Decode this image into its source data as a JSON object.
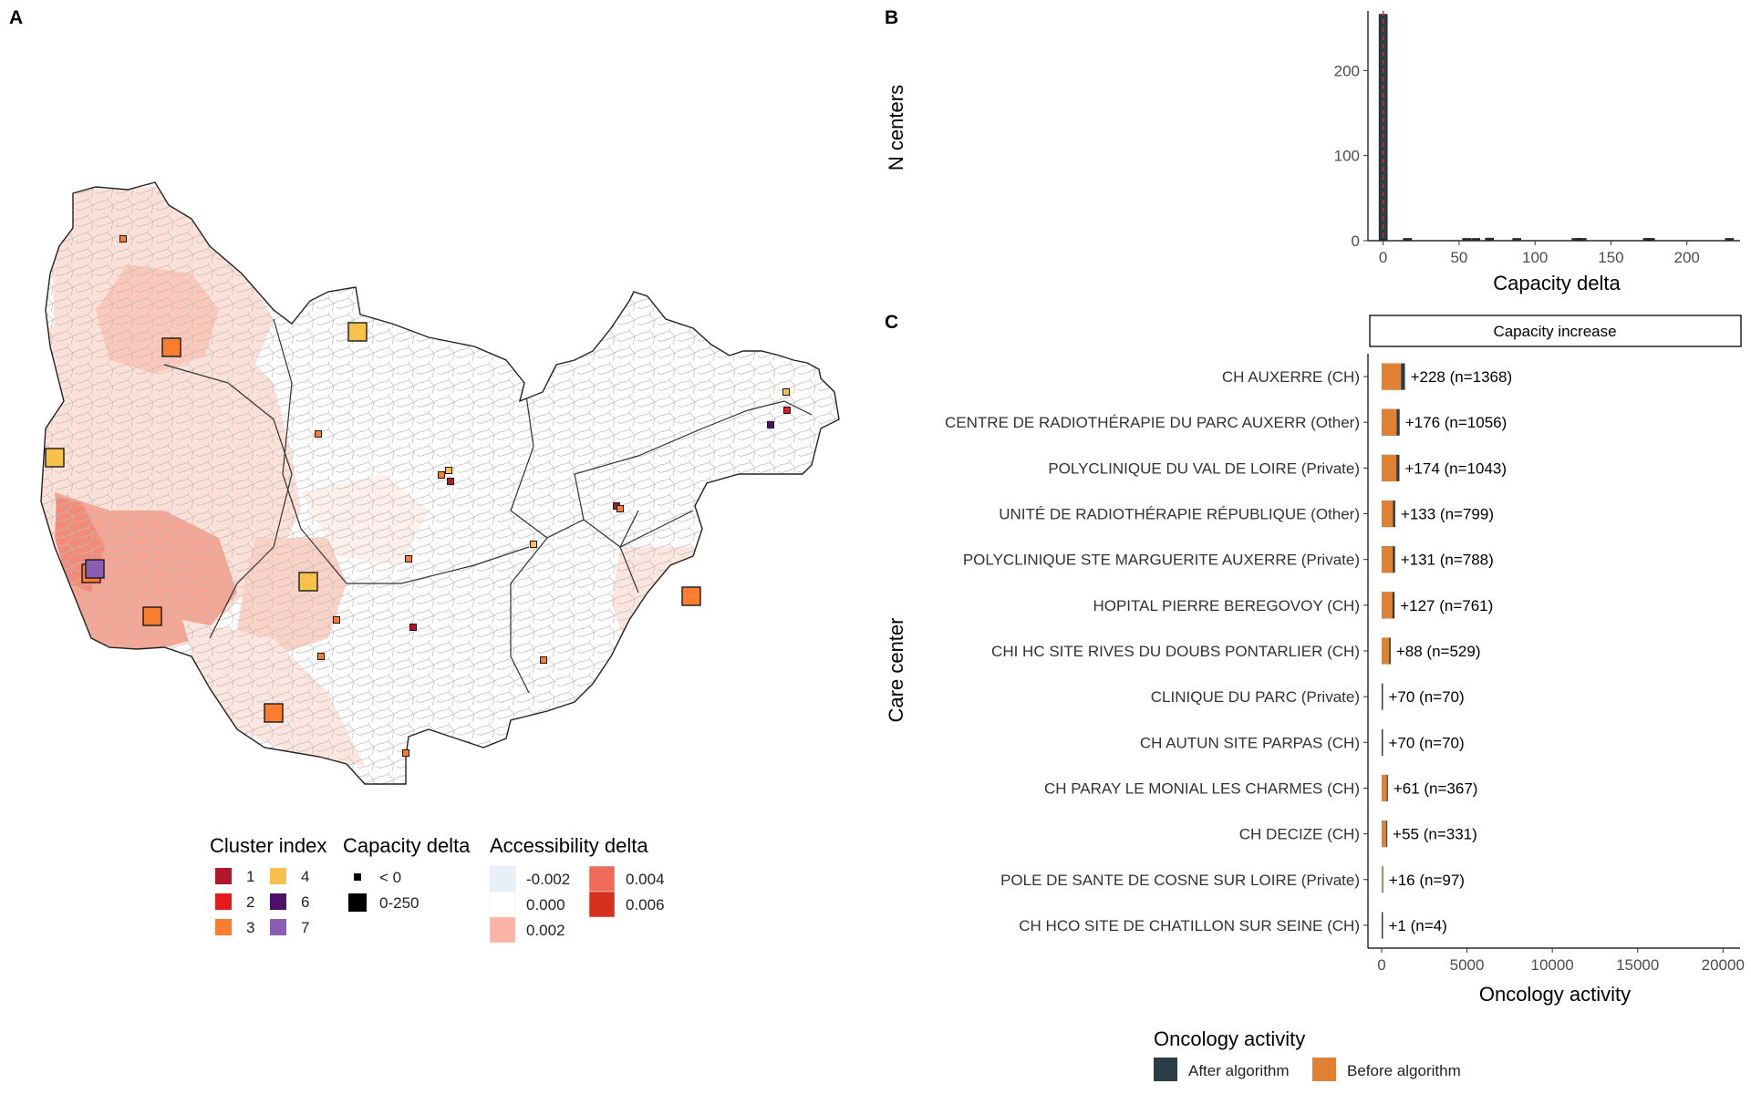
{
  "panels": {
    "a": "A",
    "b": "B",
    "c": "C"
  },
  "map": {
    "centers": [
      {
        "cluster": "3",
        "big": false
      },
      {
        "cluster": "3",
        "big": true
      },
      {
        "cluster": "4",
        "big": true
      },
      {
        "cluster": "4",
        "big": true
      },
      {
        "cluster": "3",
        "big": true
      },
      {
        "cluster": "7",
        "big": true
      },
      {
        "cluster": "3",
        "big": true
      },
      {
        "cluster": "4",
        "big": true
      },
      {
        "cluster": "3",
        "big": true
      },
      {
        "cluster": "3",
        "big": true
      },
      {
        "cluster": "3",
        "big": false
      },
      {
        "cluster": "4",
        "big": false
      },
      {
        "cluster": "1",
        "big": false
      },
      {
        "cluster": "3",
        "big": false
      },
      {
        "cluster": "3",
        "big": false
      },
      {
        "cluster": "1",
        "big": false
      },
      {
        "cluster": "3",
        "big": false
      },
      {
        "cluster": "3",
        "big": false
      },
      {
        "cluster": "3",
        "big": false
      },
      {
        "cluster": "3",
        "big": false
      },
      {
        "cluster": "4",
        "big": false
      },
      {
        "cluster": "1",
        "big": false
      },
      {
        "cluster": "3",
        "big": false
      },
      {
        "cluster": "4",
        "big": false
      },
      {
        "cluster": "2",
        "big": false
      },
      {
        "cluster": "6",
        "big": false
      }
    ]
  },
  "legend": {
    "cluster": {
      "title": "Cluster index",
      "items": [
        {
          "label": "1",
          "color": "#b2182b"
        },
        {
          "label": "2",
          "color": "#e41a1c"
        },
        {
          "label": "3",
          "color": "#fb7e30"
        },
        {
          "label": "4",
          "color": "#f9c04a"
        },
        {
          "label": "6",
          "color": "#4d1066"
        },
        {
          "label": "7",
          "color": "#8a5cb3"
        }
      ]
    },
    "capacity": {
      "title": "Capacity delta",
      "items": [
        {
          "label": "< 0",
          "size": "small"
        },
        {
          "label": "0-250",
          "size": "large"
        }
      ]
    },
    "accessibility": {
      "title": "Accessibility delta",
      "items": [
        {
          "label": "-0.002",
          "color": "#e7eff8"
        },
        {
          "label": "0.000",
          "color": "#ffffff"
        },
        {
          "label": "0.002",
          "color": "#fbb4a6"
        },
        {
          "label": "0.004",
          "color": "#ef6a5a"
        },
        {
          "label": "0.006",
          "color": "#d7301f"
        }
      ]
    }
  },
  "activity_legend": {
    "title": "Oncology activity",
    "items": [
      {
        "label": "After algorithm",
        "color": "#2b3e47"
      },
      {
        "label": "Before algorithm",
        "color": "#e08133"
      }
    ]
  },
  "chart_data": [
    {
      "type": "bar",
      "panel": "B",
      "xlabel": "Capacity delta",
      "ylabel": "N centers",
      "xlim": [
        -10,
        235
      ],
      "ylim": [
        0,
        270
      ],
      "xticks": [
        "0",
        "50",
        "100",
        "150",
        "200"
      ],
      "yticks": [
        "0",
        "100",
        "200"
      ],
      "bar_color": "#2b3e47",
      "mean_line_color": "#c0392b",
      "bins": [
        {
          "x": 0,
          "count": 265
        },
        {
          "x": 16,
          "count": 1
        },
        {
          "x": 55,
          "count": 1
        },
        {
          "x": 61,
          "count": 1
        },
        {
          "x": 70,
          "count": 2
        },
        {
          "x": 88,
          "count": 1
        },
        {
          "x": 127,
          "count": 1
        },
        {
          "x": 131,
          "count": 1
        },
        {
          "x": 174,
          "count": 1
        },
        {
          "x": 176,
          "count": 1
        },
        {
          "x": 228,
          "count": 1
        }
      ]
    },
    {
      "type": "bar",
      "panel": "C",
      "orientation": "horizontal",
      "facet": "Capacity increase",
      "xlabel": "Oncology activity",
      "ylabel": "Care center",
      "xlim": [
        -800,
        21000
      ],
      "xticks": [
        "0",
        "5000",
        "10000",
        "15000",
        "20000"
      ],
      "series_names": [
        "After algorithm",
        "Before algorithm"
      ],
      "categories": [
        "CH AUXERRE (CH)",
        "CENTRE DE RADIOTHÉRAPIE DU PARC AUXERR (Other)",
        "POLYCLINIQUE DU VAL DE LOIRE (Private)",
        "UNITÉ DE RADIOTHÉRAPIE RÉPUBLIQUE (Other)",
        "POLYCLINIQUE STE MARGUERITE AUXERRE (Private)",
        "HOPITAL PIERRE BEREGOVOY (CH)",
        "CHI HC SITE RIVES DU DOUBS PONTARLIER (CH)",
        "CLINIQUE DU PARC (Private)",
        "CH AUTUN SITE PARPAS (CH)",
        "CH PARAY LE MONIAL LES CHARMES (CH)",
        "CH DECIZE (CH)",
        "POLE DE SANTE DE COSNE SUR LOIRE (Private)",
        "CH HCO SITE DE CHATILLON SUR SEINE (CH)"
      ],
      "after": [
        1368,
        1056,
        1043,
        799,
        788,
        761,
        529,
        70,
        70,
        367,
        331,
        97,
        4
      ],
      "before": [
        1140,
        880,
        869,
        666,
        657,
        634,
        441,
        0,
        0,
        306,
        276,
        81,
        3
      ],
      "labels": [
        "+228 (n=1368)",
        "+176 (n=1056)",
        "+174 (n=1043)",
        "+133 (n=799)",
        "+131 (n=788)",
        "+127 (n=761)",
        "+88 (n=529)",
        "+70 (n=70)",
        "+70 (n=70)",
        "+61 (n=367)",
        "+55 (n=331)",
        "+16 (n=97)",
        "+1 (n=4)"
      ]
    }
  ]
}
